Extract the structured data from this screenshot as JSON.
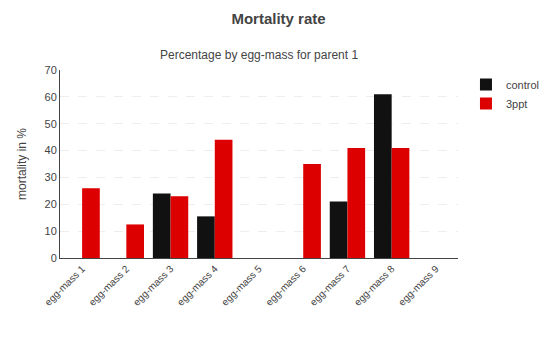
{
  "chart_data": {
    "type": "bar",
    "title": "Mortality rate",
    "subtitle": "Percentage by egg-mass for parent 1",
    "ylabel": "mortality in %",
    "categories": [
      "egg-mass 1",
      "egg-mass 2",
      "egg-mass 3",
      "egg-mass 4",
      "egg-mass 5",
      "egg-mass 6",
      "egg-mass 7",
      "egg-mass 8",
      "egg-mass 9"
    ],
    "series": [
      {
        "name": "control",
        "color": "#111111",
        "values": [
          0,
          0,
          24,
          15.5,
          0,
          0,
          21,
          61,
          0
        ]
      },
      {
        "name": "3ppt",
        "color": "#dd0000",
        "values": [
          26,
          12.5,
          23,
          44,
          0,
          35,
          41,
          41,
          0
        ]
      }
    ],
    "ylim": [
      0,
      70
    ],
    "yticks": [
      0,
      10,
      20,
      30,
      40,
      50,
      60,
      70
    ],
    "grid": true,
    "legend": "upper right"
  }
}
